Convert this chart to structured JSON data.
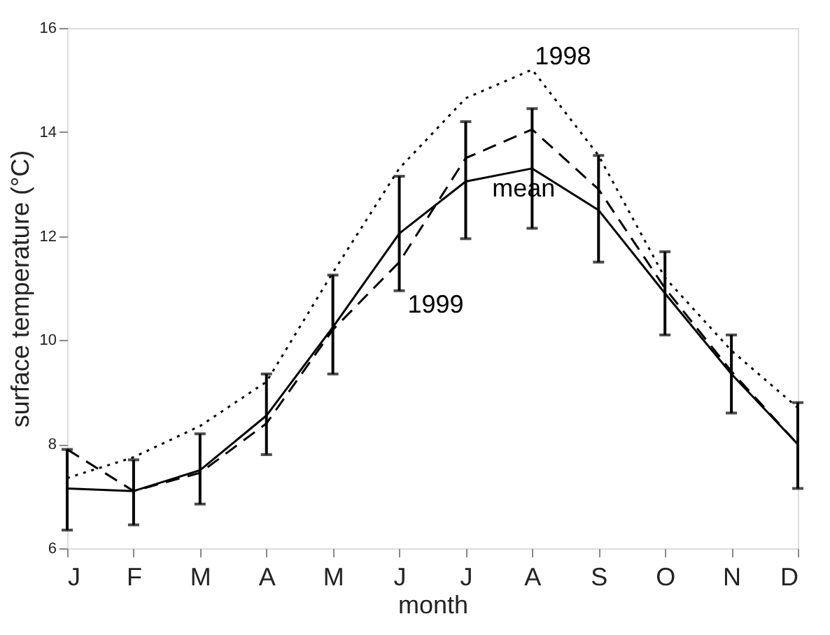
{
  "chart_data": {
    "type": "line",
    "xlabel": "month",
    "ylabel": "surface temperature (°C)",
    "categories": [
      "J",
      "F",
      "M",
      "A",
      "M",
      "J",
      "J",
      "A",
      "S",
      "O",
      "N",
      "D"
    ],
    "series": [
      {
        "name": "mean",
        "color": "#000000",
        "line_style": "solid",
        "values": [
          7.15,
          7.1,
          7.5,
          8.55,
          10.25,
          12.05,
          13.05,
          13.3,
          12.5,
          10.9,
          9.35,
          8.0
        ],
        "errors": [
          [
            6.35,
            7.9
          ],
          [
            6.45,
            7.7
          ],
          [
            6.85,
            8.2
          ],
          [
            7.8,
            9.35
          ],
          [
            9.35,
            11.25
          ],
          [
            10.95,
            13.15
          ],
          [
            11.95,
            14.2
          ],
          [
            12.15,
            14.45
          ],
          [
            11.5,
            13.55
          ],
          [
            10.1,
            11.7
          ],
          [
            8.6,
            10.1
          ],
          [
            7.15,
            8.8
          ]
        ]
      },
      {
        "name": "1998",
        "color": "#000000",
        "line_style": "dotted",
        "values": [
          7.35,
          7.75,
          8.35,
          9.2,
          11.3,
          13.3,
          14.65,
          15.2,
          13.55,
          11.2,
          9.8,
          8.7
        ]
      },
      {
        "name": "1999",
        "color": "#000000",
        "line_style": "dashed",
        "values": [
          7.9,
          7.1,
          7.45,
          8.4,
          10.2,
          11.5,
          13.5,
          14.05,
          12.9,
          11.0,
          9.4,
          8.0
        ]
      }
    ],
    "ylim": [
      6,
      16
    ],
    "yticks": [
      6,
      8,
      10,
      12,
      14,
      16
    ],
    "grid": false,
    "marker": "none"
  }
}
